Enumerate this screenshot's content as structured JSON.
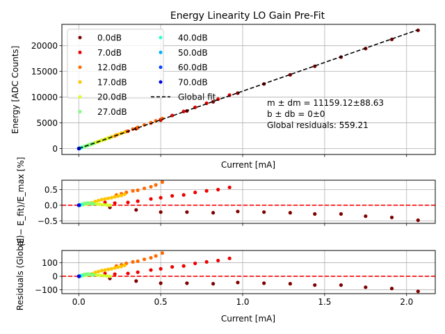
{
  "figure": {
    "title": "Energy Linearity LO Gain Pre-Fit"
  },
  "chart_data": [
    {
      "type": "scatter",
      "panel": "energy",
      "title": "Energy Linearity LO Gain Pre-Fit",
      "xlabel": "Current [mA]",
      "ylabel": "Energy [ADC Counts]",
      "xlim": [
        -0.103,
        2.175
      ],
      "ylim": [
        -1150,
        24150
      ],
      "xticks": [
        0.0,
        0.5,
        1.0,
        1.5,
        2.0
      ],
      "xtick_labels_visible": false,
      "yticks": [
        0,
        5000,
        10000,
        15000,
        20000
      ],
      "ytick_labels": [
        "0",
        "5000",
        "10000",
        "15000",
        "20000"
      ],
      "grid": true,
      "legend_position": "upper-left",
      "legend_columns": 2,
      "fit": {
        "label": "Global fit",
        "slope": 11159.12,
        "intercept": 0,
        "color": "#000000",
        "style": "dashed"
      },
      "annotation": [
        "m ± dm = 11159.12±88.63",
        "b ± db = 0±0",
        "Global residuals: 559.21"
      ]
    },
    {
      "type": "scatter",
      "panel": "percent",
      "xlabel": "",
      "ylabel": "(E − E_fit)/E_max [%]",
      "xlim": [
        -0.103,
        2.175
      ],
      "ylim": [
        -0.58,
        0.8
      ],
      "xticks": [
        0.0,
        0.5,
        1.0,
        1.5,
        2.0
      ],
      "xtick_labels_visible": false,
      "yticks": [
        -0.5,
        0.0,
        0.5
      ],
      "ytick_labels": [
        "−0.5",
        "0.0",
        "0.5"
      ],
      "grid": true,
      "zero_line": {
        "color": "#ff0000",
        "style": "dashed"
      }
    },
    {
      "type": "scatter",
      "panel": "residuals",
      "xlabel": "Current [mA]",
      "ylabel": "Residuals (Global)",
      "xlim": [
        -0.103,
        2.175
      ],
      "ylim": [
        -128,
        190
      ],
      "xticks": [
        0.0,
        0.5,
        1.0,
        1.5,
        2.0
      ],
      "xtick_labels": [
        "0.0",
        "0.5",
        "1.0",
        "1.5",
        "2.0"
      ],
      "yticks": [
        -100,
        0,
        100
      ],
      "ytick_labels": [
        "−100",
        "0",
        "100"
      ],
      "grid": true,
      "zero_line": {
        "color": "#ff0000",
        "style": "dashed"
      }
    }
  ],
  "series": [
    {
      "name": "0.0dB",
      "color": "#7f0000",
      "x": [
        0.19,
        0.35,
        0.5,
        0.66,
        0.82,
        0.97,
        1.13,
        1.29,
        1.44,
        1.6,
        1.75,
        1.91,
        2.07
      ],
      "energy": [
        2104,
        3871,
        5529,
        7314,
        9095,
        10778,
        12559,
        14340,
        16004,
        17790,
        19448,
        21224,
        22988
      ],
      "percent": [
        -0.07,
        -0.15,
        -0.22,
        -0.22,
        -0.24,
        -0.2,
        -0.22,
        -0.24,
        -0.28,
        -0.28,
        -0.35,
        -0.39,
        -0.48
      ],
      "residual": [
        -16,
        -35,
        -51,
        -51,
        -55,
        -46,
        -51,
        -55,
        -65,
        -65,
        -81,
        -90,
        -111
      ]
    },
    {
      "name": "7.0dB",
      "color": "#ee0000",
      "x": [
        0.16,
        0.22,
        0.3,
        0.36,
        0.44,
        0.5,
        0.57,
        0.64,
        0.71,
        0.78,
        0.85,
        0.92
      ],
      "energy": [
        1806,
        2471,
        3369,
        4047,
        4956,
        5635,
        6430,
        7218,
        8018,
        8810,
        9601,
        10398
      ],
      "percent": [
        0.09,
        0.07,
        0.09,
        0.13,
        0.2,
        0.24,
        0.3,
        0.33,
        0.41,
        0.46,
        0.5,
        0.57
      ],
      "residual": [
        21,
        16,
        21,
        30,
        46,
        55,
        69,
        76,
        95,
        106,
        116,
        132
      ]
    },
    {
      "name": "12.0dB",
      "color": "#ff6a00",
      "x": [
        0.23,
        0.26,
        0.29,
        0.33,
        0.36,
        0.4,
        0.44,
        0.47,
        0.51
      ],
      "energy": [
        2643,
        2986,
        3331,
        3789,
        4128,
        4589,
        5046,
        5395,
        5862
      ],
      "percent": [
        0.33,
        0.37,
        0.41,
        0.46,
        0.48,
        0.54,
        0.59,
        0.65,
        0.74
      ],
      "residual": [
        76,
        85,
        95,
        106,
        111,
        125,
        136,
        150,
        171
      ]
    },
    {
      "name": "17.0dB",
      "color": "#ffc400",
      "x": [
        0.06,
        0.08,
        0.1,
        0.12,
        0.14,
        0.16,
        0.18,
        0.2,
        0.22,
        0.24,
        0.26,
        0.28
      ],
      "energy": [
        682,
        911,
        1144,
        1374,
        1604,
        1831,
        2060,
        2287,
        2517,
        2745,
        2973,
        3206
      ],
      "percent": [
        0.05,
        0.08,
        0.12,
        0.15,
        0.18,
        0.2,
        0.22,
        0.24,
        0.27,
        0.29,
        0.31,
        0.35
      ],
      "residual": [
        12,
        18,
        28,
        35,
        42,
        46,
        51,
        55,
        62,
        67,
        72,
        81
      ]
    },
    {
      "name": "20.0dB",
      "color": "#d4ff2a",
      "x": [
        0.03,
        0.05,
        0.07,
        0.09,
        0.11,
        0.13,
        0.15,
        0.17,
        0.19
      ],
      "energy": [
        340,
        567,
        793,
        1016,
        1237,
        1458,
        1679,
        1899,
        2120
      ],
      "percent": [
        0.02,
        0.04,
        0.05,
        0.05,
        0.04,
        0.03,
        0.02,
        0.01,
        0.0
      ],
      "residual": [
        5,
        9,
        12,
        12,
        9,
        7,
        5,
        2,
        0
      ]
    },
    {
      "name": "27.0dB",
      "color": "#7dff7a",
      "x": [
        0.01,
        0.02,
        0.03,
        0.04,
        0.05,
        0.06,
        0.07,
        0.08,
        0.09
      ],
      "energy": [
        114,
        230,
        347,
        460,
        574,
        686,
        795,
        905,
        1013
      ],
      "percent": [
        0.01,
        0.03,
        0.05,
        0.06,
        0.07,
        0.07,
        0.06,
        0.05,
        0.04
      ],
      "residual": [
        2,
        7,
        12,
        14,
        16,
        16,
        14,
        12,
        9
      ]
    },
    {
      "name": "40.0dB",
      "color": "#29ffce",
      "x": [
        0.003,
        0.006,
        0.009,
        0.012,
        0.015,
        0.018
      ],
      "energy": [
        33,
        69,
        102,
        139,
        172,
        206
      ],
      "percent": [
        0.0,
        0.01,
        0.01,
        0.02,
        0.02,
        0.02
      ],
      "residual": [
        0,
        2,
        2,
        5,
        5,
        5
      ]
    },
    {
      "name": "50.0dB",
      "color": "#00b0ff",
      "x": [
        0.001,
        0.002,
        0.003,
        0.004,
        0.005
      ],
      "energy": [
        11,
        22,
        33,
        45,
        56
      ],
      "percent": [
        0,
        0,
        0,
        0,
        0
      ],
      "residual": [
        0,
        0,
        0,
        0,
        0
      ]
    },
    {
      "name": "60.0dB",
      "color": "#0040ff",
      "x": [
        0.0005,
        0.001,
        0.0015
      ],
      "energy": [
        6,
        11,
        17
      ],
      "percent": [
        0,
        0,
        0
      ],
      "residual": [
        0,
        0,
        0
      ]
    },
    {
      "name": "70.0dB",
      "color": "#0000e0",
      "x": [
        0.0002,
        0.0004
      ],
      "energy": [
        2,
        4
      ],
      "percent": [
        0,
        0
      ],
      "residual": [
        0,
        0
      ]
    }
  ]
}
